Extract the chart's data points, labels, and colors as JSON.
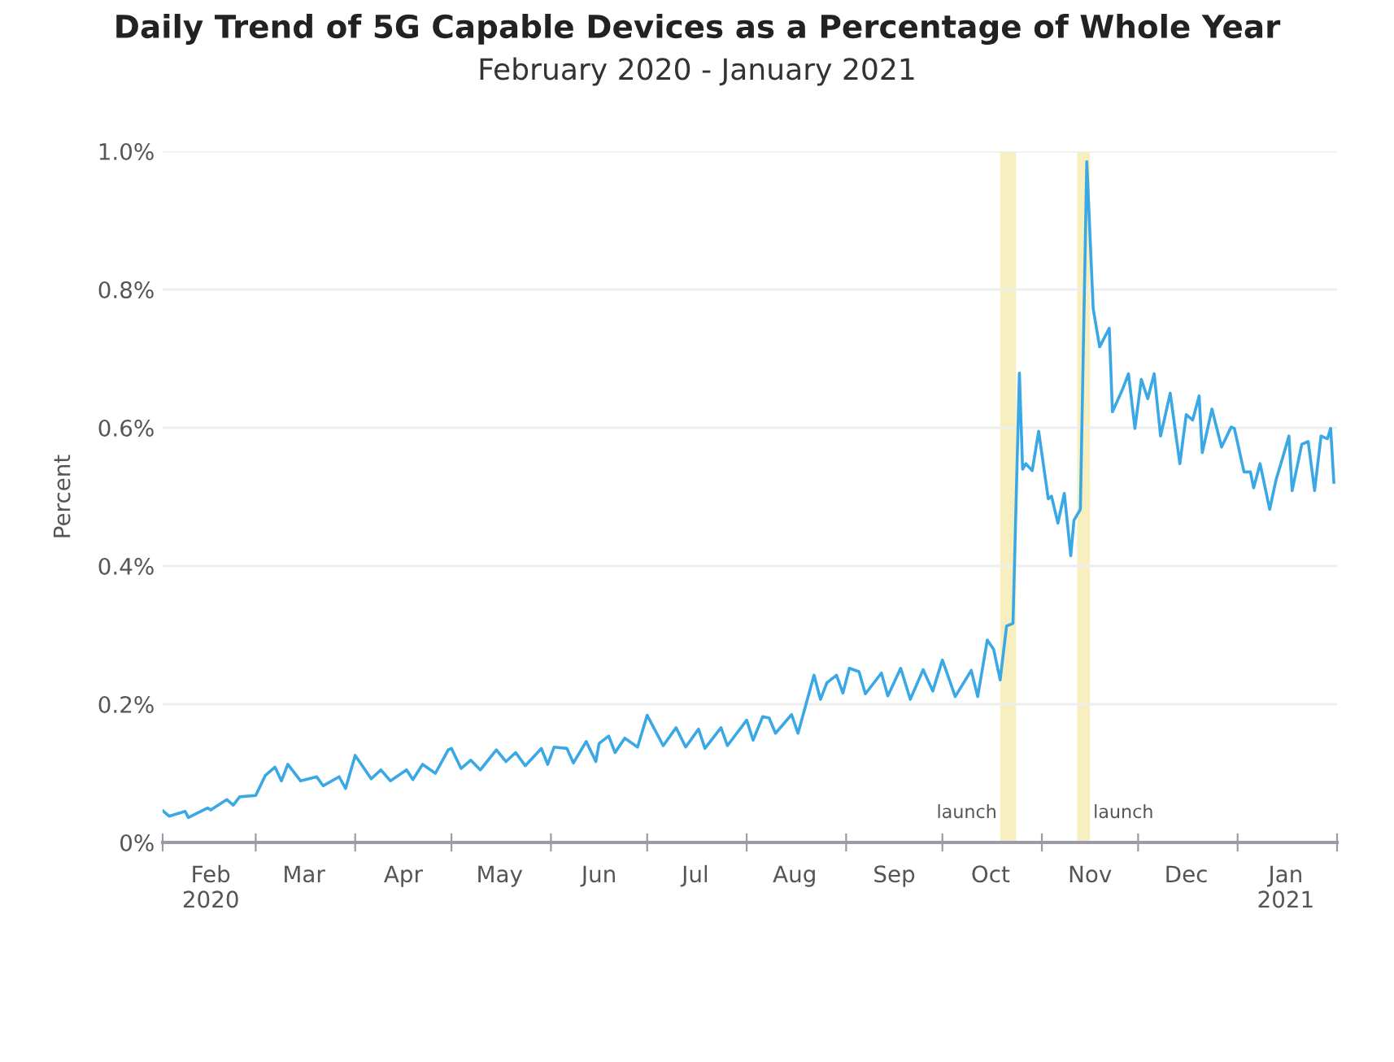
{
  "chart_data": {
    "type": "line",
    "title": "Daily Trend of 5G Capable Devices as a Percentage of Whole Year",
    "subtitle": "February 2020 - January 2021",
    "ylabel": "Percent",
    "x": [
      "2020-02-01",
      "2020-02-03",
      "2020-02-08",
      "2020-02-09",
      "2020-02-15",
      "2020-02-16",
      "2020-02-21",
      "2020-02-23",
      "2020-02-25",
      "2020-03-01",
      "2020-03-04",
      "2020-03-07",
      "2020-03-09",
      "2020-03-11",
      "2020-03-15",
      "2020-03-20",
      "2020-03-22",
      "2020-03-27",
      "2020-03-29",
      "2020-04-01",
      "2020-04-06",
      "2020-04-09",
      "2020-04-12",
      "2020-04-17",
      "2020-04-19",
      "2020-04-22",
      "2020-04-26",
      "2020-04-30",
      "2020-05-01",
      "2020-05-04",
      "2020-05-07",
      "2020-05-10",
      "2020-05-15",
      "2020-05-18",
      "2020-05-21",
      "2020-05-24",
      "2020-05-29",
      "2020-05-31",
      "2020-06-02",
      "2020-06-06",
      "2020-06-08",
      "2020-06-12",
      "2020-06-15",
      "2020-06-16",
      "2020-06-19",
      "2020-06-21",
      "2020-06-24",
      "2020-06-28",
      "2020-07-01",
      "2020-07-06",
      "2020-07-10",
      "2020-07-13",
      "2020-07-17",
      "2020-07-19",
      "2020-07-24",
      "2020-07-26",
      "2020-08-01",
      "2020-08-03",
      "2020-08-06",
      "2020-08-08",
      "2020-08-10",
      "2020-08-15",
      "2020-08-17",
      "2020-08-22",
      "2020-08-24",
      "2020-08-26",
      "2020-08-29",
      "2020-08-31",
      "2020-09-02",
      "2020-09-05",
      "2020-09-07",
      "2020-09-12",
      "2020-09-14",
      "2020-09-18",
      "2020-09-21",
      "2020-09-25",
      "2020-09-28",
      "2020-10-01",
      "2020-10-05",
      "2020-10-10",
      "2020-10-12",
      "2020-10-15",
      "2020-10-17",
      "2020-10-19",
      "2020-10-21",
      "2020-10-23",
      "2020-10-25",
      "2020-10-26",
      "2020-10-27",
      "2020-10-29",
      "2020-10-31",
      "2020-11-03",
      "2020-11-04",
      "2020-11-06",
      "2020-11-08",
      "2020-11-10",
      "2020-11-11",
      "2020-11-13",
      "2020-11-15",
      "2020-11-17",
      "2020-11-19",
      "2020-11-22",
      "2020-11-23",
      "2020-11-26",
      "2020-11-28",
      "2020-11-30",
      "2020-12-02",
      "2020-12-04",
      "2020-12-06",
      "2020-12-08",
      "2020-12-11",
      "2020-12-14",
      "2020-12-16",
      "2020-12-18",
      "2020-12-20",
      "2020-12-21",
      "2020-12-24",
      "2020-12-27",
      "2020-12-30",
      "2020-12-31",
      "2021-01-03",
      "2021-01-05",
      "2021-01-06",
      "2021-01-08",
      "2021-01-11",
      "2021-01-13",
      "2021-01-15",
      "2021-01-17",
      "2021-01-18",
      "2021-01-21",
      "2021-01-23",
      "2021-01-25",
      "2021-01-27",
      "2021-01-29",
      "2021-01-30",
      "2021-01-31"
    ],
    "series": [
      {
        "color": "#3aa8e4",
        "values": [
          0.046,
          0.038,
          0.045,
          0.036,
          0.05,
          0.047,
          0.062,
          0.054,
          0.066,
          0.068,
          0.097,
          0.109,
          0.089,
          0.113,
          0.089,
          0.095,
          0.082,
          0.095,
          0.078,
          0.126,
          0.092,
          0.105,
          0.089,
          0.105,
          0.091,
          0.113,
          0.1,
          0.134,
          0.136,
          0.107,
          0.119,
          0.105,
          0.134,
          0.117,
          0.13,
          0.111,
          0.136,
          0.113,
          0.138,
          0.136,
          0.115,
          0.146,
          0.117,
          0.143,
          0.154,
          0.13,
          0.151,
          0.138,
          0.184,
          0.14,
          0.166,
          0.138,
          0.164,
          0.136,
          0.166,
          0.14,
          0.177,
          0.148,
          0.182,
          0.18,
          0.158,
          0.185,
          0.158,
          0.242,
          0.207,
          0.231,
          0.242,
          0.216,
          0.252,
          0.247,
          0.215,
          0.245,
          0.212,
          0.252,
          0.207,
          0.25,
          0.219,
          0.264,
          0.211,
          0.249,
          0.211,
          0.293,
          0.279,
          0.235,
          0.313,
          0.317,
          0.679,
          0.54,
          0.548,
          0.538,
          0.595,
          0.497,
          0.501,
          0.462,
          0.505,
          0.415,
          0.466,
          0.482,
          0.985,
          0.772,
          0.717,
          0.744,
          0.623,
          0.654,
          0.678,
          0.599,
          0.67,
          0.642,
          0.678,
          0.588,
          0.65,
          0.548,
          0.619,
          0.611,
          0.646,
          0.564,
          0.627,
          0.572,
          0.601,
          0.599,
          0.536,
          0.536,
          0.513,
          0.548,
          0.482,
          0.525,
          0.556,
          0.588,
          0.509,
          0.576,
          0.58,
          0.509,
          0.588,
          0.584,
          0.599,
          0.521
        ]
      }
    ],
    "xlim": [
      "2020-02-01",
      "2021-02-01"
    ],
    "xticks": [
      {
        "value": "2020-02-01",
        "label": null
      },
      {
        "value": "2020-03-01",
        "label": null
      },
      {
        "value": "2020-04-01",
        "label": null
      },
      {
        "value": "2020-05-01",
        "label": null
      },
      {
        "value": "2020-06-01",
        "label": null
      },
      {
        "value": "2020-07-01",
        "label": null
      },
      {
        "value": "2020-08-01",
        "label": null
      },
      {
        "value": "2020-09-01",
        "label": null
      },
      {
        "value": "2020-10-01",
        "label": null
      },
      {
        "value": "2020-11-01",
        "label": null
      },
      {
        "value": "2020-12-01",
        "label": null
      },
      {
        "value": "2021-01-01",
        "label": null
      },
      {
        "value": "2021-02-01",
        "label": null
      },
      {
        "value": "2020-02-16",
        "label": "Feb\n2020"
      },
      {
        "value": "2020-03-16",
        "label": "Mar"
      },
      {
        "value": "2020-04-16",
        "label": "Apr"
      },
      {
        "value": "2020-05-16",
        "label": "May"
      },
      {
        "value": "2020-06-16",
        "label": "Jun"
      },
      {
        "value": "2020-07-16",
        "label": "Jul"
      },
      {
        "value": "2020-08-16",
        "label": "Aug"
      },
      {
        "value": "2020-09-16",
        "label": "Sep"
      },
      {
        "value": "2020-10-16",
        "label": "Oct"
      },
      {
        "value": "2020-11-16",
        "label": "Nov"
      },
      {
        "value": "2020-12-16",
        "label": "Dec"
      },
      {
        "value": "2021-01-16",
        "label": "Jan\n2021"
      }
    ],
    "ylim": [
      0,
      1.0
    ],
    "yticks": [
      {
        "value": 0,
        "label": "0%"
      },
      {
        "value": 0.2,
        "label": "0.2%"
      },
      {
        "value": 0.4,
        "label": "0.4%"
      },
      {
        "value": 0.6,
        "label": "0.6%"
      },
      {
        "value": 0.8,
        "label": "0.8%"
      },
      {
        "value": 1.0,
        "label": "1.0%"
      }
    ],
    "bands": [
      {
        "axis": "x",
        "from": "2020-10-19",
        "to": "2020-10-24",
        "label": "launch",
        "color": "#f8efc0"
      },
      {
        "axis": "x",
        "from": "2020-11-12",
        "to": "2020-11-16",
        "label": "launch",
        "color": "#f8efc0"
      }
    ],
    "grid": "y",
    "legend": false,
    "line_style": "solid",
    "marker": "none"
  }
}
